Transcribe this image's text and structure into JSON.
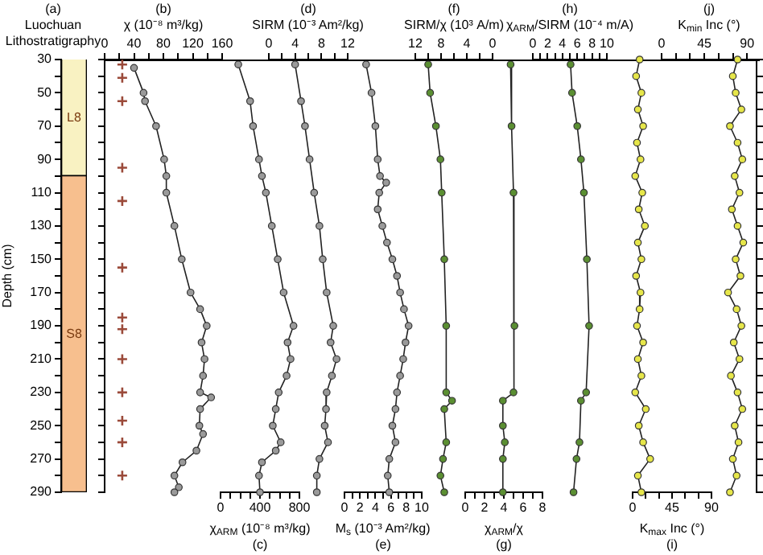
{
  "chart_data": [
    {
      "type": "bar",
      "title": "(a)",
      "subtitle": "Luochuan Lithostratigraphy",
      "ylabel": "Depth (cm)",
      "categories": [
        null
      ],
      "tick_labels": "y",
      "series": [
        {
          "name": "L8",
          "color": "#f9f2c2",
          "base": [
            30
          ],
          "values": [
            70
          ]
        },
        {
          "name": "S8",
          "color": "#f7bf8e",
          "base": [
            100
          ],
          "values": [
            190
          ]
        }
      ],
      "ylim": [
        290,
        30
      ],
      "yticks": [
        30,
        {
          "value": 40,
          "label": null
        },
        50,
        {
          "value": 60,
          "label": null
        },
        70,
        {
          "value": 80,
          "label": null
        },
        90,
        {
          "value": 100,
          "label": null
        },
        110,
        {
          "value": 120,
          "label": null
        },
        130,
        {
          "value": 140,
          "label": null
        },
        150,
        {
          "value": 160,
          "label": null
        },
        170,
        {
          "value": 180,
          "label": null
        },
        190,
        {
          "value": 200,
          "label": null
        },
        210,
        {
          "value": 220,
          "label": null
        },
        230,
        {
          "value": 240,
          "label": null
        },
        250,
        {
          "value": 260,
          "label": null
        },
        270,
        {
          "value": 280,
          "label": null
        },
        290
      ]
    },
    {
      "type": "line",
      "orientation": "horizontal",
      "title": "(b)",
      "xlabel": "χ (10⁻⁸ m³/kg)",
      "marker": "circle",
      "tick_labels": "x",
      "series": [
        {
          "color": "#9a9a9a",
          "x": [
            35,
            50,
            55,
            70,
            90,
            100,
            110,
            130,
            150,
            170,
            180,
            190,
            200,
            210,
            220,
            230,
            233,
            240,
            250,
            255,
            265,
            272,
            280,
            287,
            290
          ],
          "values": [
            40,
            53,
            55,
            70,
            81,
            84,
            84,
            95,
            105,
            117,
            130,
            139,
            132,
            136,
            134,
            130,
            145,
            130,
            129,
            134,
            125,
            106,
            95,
            101,
            95
          ]
        },
        {
          "type": "scatter",
          "marker": "cross",
          "color": "#9b4a3a",
          "x": [
            33,
            41,
            55,
            95,
            115,
            155,
            185,
            192,
            210,
            230,
            247,
            260,
            280
          ],
          "values": [
            24,
            24,
            24,
            24,
            24,
            24,
            24,
            24,
            24,
            24,
            24,
            24,
            24
          ]
        }
      ],
      "xlim": [
        0,
        160
      ],
      "xticks": [
        0,
        {
          "value": 20,
          "label": null
        },
        40,
        {
          "value": 60,
          "label": null
        },
        80,
        {
          "value": 100,
          "label": null
        },
        120,
        {
          "value": 140,
          "label": null
        },
        160
      ],
      "ylim": [
        290,
        30
      ],
      "yticks": [
        {
          "value": 30,
          "label": null
        },
        {
          "value": 40,
          "label": null
        },
        {
          "value": 50,
          "label": null
        },
        {
          "value": 60,
          "label": null
        },
        {
          "value": 70,
          "label": null
        },
        {
          "value": 80,
          "label": null
        },
        {
          "value": 90,
          "label": null
        },
        {
          "value": 100,
          "label": null
        },
        {
          "value": 110,
          "label": null
        },
        {
          "value": 120,
          "label": null
        },
        {
          "value": 130,
          "label": null
        },
        {
          "value": 140,
          "label": null
        },
        {
          "value": 150,
          "label": null
        },
        {
          "value": 160,
          "label": null
        },
        {
          "value": 170,
          "label": null
        },
        {
          "value": 180,
          "label": null
        },
        {
          "value": 190,
          "label": null
        },
        {
          "value": 200,
          "label": null
        },
        {
          "value": 210,
          "label": null
        },
        {
          "value": 220,
          "label": null
        },
        {
          "value": 230,
          "label": null
        },
        {
          "value": 240,
          "label": null
        },
        {
          "value": 250,
          "label": null
        },
        {
          "value": 260,
          "label": null
        },
        {
          "value": 270,
          "label": null
        },
        {
          "value": 280,
          "label": null
        },
        {
          "value": 290,
          "label": null
        }
      ]
    },
    {
      "type": "line",
      "orientation": "horizontal",
      "title": "(c)",
      "xlabel": "χ$_{ARM}$ (10⁻⁸ m³/kg)",
      "marker": "circle",
      "tick_labels": "x",
      "series": [
        {
          "color": "#9a9a9a",
          "x": [
            33,
            55,
            70,
            90,
            100,
            110,
            130,
            150,
            170,
            190,
            200,
            210,
            220,
            230,
            240,
            250,
            260,
            265,
            272,
            280,
            290
          ],
          "values": [
            180,
            300,
            330,
            390,
            420,
            460,
            520,
            580,
            640,
            740,
            680,
            710,
            670,
            590,
            560,
            530,
            610,
            560,
            420,
            390,
            400
          ]
        }
      ],
      "xlim": [
        0,
        800
      ],
      "xticks": [
        0,
        {
          "value": 100,
          "label": null
        },
        {
          "value": 200,
          "label": null
        },
        {
          "value": 300,
          "label": null
        },
        400,
        {
          "value": 500,
          "label": null
        },
        {
          "value": 600,
          "label": null
        },
        {
          "value": 700,
          "label": null
        },
        800
      ],
      "ylim": [
        290,
        30
      ]
    },
    {
      "type": "line",
      "orientation": "horizontal",
      "title": "(d)",
      "xlabel": "SIRM (10⁻³ Am²/kg)",
      "marker": "circle",
      "tick_labels": "x",
      "series": [
        {
          "color": "#9a9a9a",
          "x": [
            33,
            55,
            70,
            90,
            110,
            130,
            150,
            170,
            190,
            200,
            210,
            220,
            230,
            240,
            250,
            260,
            270,
            280,
            290
          ],
          "values": [
            4.0,
            4.9,
            5.5,
            6.2,
            6.9,
            7.7,
            8.2,
            8.8,
            9.8,
            9.4,
            10.3,
            9.6,
            8.8,
            8.7,
            8.5,
            9.0,
            7.7,
            7.3,
            7.3
          ]
        }
      ],
      "xlim": [
        0,
        12
      ],
      "xticks": [
        0,
        {
          "value": 2,
          "label": null
        },
        4,
        {
          "value": 6,
          "label": null
        },
        8,
        {
          "value": 10,
          "label": null
        },
        12
      ],
      "ylim": [
        290,
        30
      ]
    },
    {
      "type": "line",
      "orientation": "horizontal",
      "title": "(e)",
      "xlabel": "M$_{s}$ (10⁻³ Am²/kg)",
      "marker": "circle",
      "tick_labels": "x",
      "series": [
        {
          "color": "#9a9a9a",
          "x": [
            33,
            50,
            70,
            90,
            100,
            104,
            110,
            120,
            130,
            140,
            150,
            160,
            170,
            180,
            190,
            200,
            210,
            220,
            230,
            240,
            250,
            260,
            270,
            280,
            290
          ],
          "values": [
            2.8,
            3.5,
            4.0,
            4.3,
            4.6,
            5.4,
            4.5,
            4.3,
            4.9,
            5.5,
            6.2,
            6.8,
            7.2,
            7.7,
            8.3,
            7.9,
            7.6,
            7.2,
            6.8,
            6.6,
            6.2,
            6.6,
            5.8,
            5.6,
            5.8
          ]
        }
      ],
      "xlim": [
        0,
        10
      ],
      "xticks": [
        0,
        {
          "value": 1,
          "label": null
        },
        2,
        {
          "value": 3,
          "label": null
        },
        4,
        {
          "value": 5,
          "label": null
        },
        6,
        {
          "value": 7,
          "label": null
        },
        8,
        {
          "value": 9,
          "label": null
        },
        10
      ],
      "ylim": [
        290,
        30
      ]
    },
    {
      "type": "line",
      "orientation": "horizontal",
      "title": "(f)",
      "xlabel": "SIRM/χ (10³ A/m)",
      "marker": "circle",
      "tick_labels": "x",
      "series": [
        {
          "color": "#5b8f32",
          "x": [
            33,
            50,
            70,
            90,
            110,
            150,
            190,
            230,
            235,
            240,
            260,
            270,
            280,
            290
          ],
          "values": [
            10.0,
            9.7,
            8.8,
            8.1,
            7.9,
            7.5,
            7.2,
            7.2,
            6.3,
            7.5,
            7.2,
            7.7,
            8.1,
            7.5
          ]
        }
      ],
      "xlim": [
        12,
        0
      ],
      "xticks": [
        12,
        {
          "value": 10,
          "label": null
        },
        8,
        {
          "value": 6,
          "label": null
        },
        4,
        {
          "value": 2,
          "label": null
        },
        0
      ],
      "ylim": [
        290,
        30
      ]
    },
    {
      "type": "line",
      "orientation": "horizontal",
      "title": "(g)",
      "xlabel": "χ$_{ARM}$/χ",
      "marker": "circle",
      "tick_labels": "x",
      "series": [
        {
          "color": "#5b8f32",
          "x": [
            33,
            70,
            110,
            190,
            230,
            235,
            250,
            260,
            270,
            290
          ],
          "values": [
            4.7,
            4.8,
            5.0,
            5.1,
            5.0,
            3.9,
            3.9,
            4.1,
            3.9,
            3.9
          ]
        }
      ],
      "xlim": [
        0,
        8
      ],
      "xticks": [
        0,
        {
          "value": 1,
          "label": null
        },
        2,
        {
          "value": 3,
          "label": null
        },
        4,
        {
          "value": 5,
          "label": null
        },
        6,
        {
          "value": 7,
          "label": null
        },
        8
      ],
      "ylim": [
        290,
        30
      ]
    },
    {
      "type": "line",
      "orientation": "horizontal",
      "title": "(h)",
      "xlabel": "χ$_{ARM}$/SIRM (10⁻⁴ m/A)",
      "marker": "circle",
      "tick_labels": "x",
      "series": [
        {
          "color": "#5b8f32",
          "x": [
            33,
            50,
            70,
            90,
            110,
            150,
            190,
            230,
            235,
            260,
            270,
            290
          ],
          "values": [
            5.1,
            5.3,
            6.0,
            6.5,
            6.9,
            7.3,
            7.6,
            7.2,
            6.5,
            6.3,
            5.9,
            5.5
          ]
        }
      ],
      "xlim": [
        0,
        10
      ],
      "xticks": [
        0,
        {
          "value": 1,
          "label": null
        },
        2,
        {
          "value": 3,
          "label": null
        },
        4,
        {
          "value": 5,
          "label": null
        },
        6,
        {
          "value": 7,
          "label": null
        },
        8,
        {
          "value": 9,
          "label": null
        },
        10
      ],
      "ylim": [
        290,
        30
      ]
    },
    {
      "type": "line",
      "orientation": "horizontal",
      "title": "(i)",
      "xlabel": "K$_{max}$ Inc (°)",
      "marker": "circle",
      "tick_labels": "x",
      "series": [
        {
          "color": "#e6e64a",
          "x": [
            30,
            40,
            50,
            60,
            70,
            80,
            90,
            100,
            110,
            120,
            130,
            140,
            150,
            160,
            170,
            180,
            190,
            200,
            210,
            220,
            230,
            240,
            250,
            260,
            270,
            280,
            290
          ],
          "values": [
            8,
            4,
            10,
            6,
            12,
            5,
            9,
            3,
            11,
            7,
            14,
            6,
            10,
            4,
            9,
            8,
            5,
            12,
            6,
            10,
            3,
            15,
            7,
            12,
            20,
            6,
            10
          ]
        }
      ],
      "xlim": [
        0,
        90
      ],
      "xticks": [
        0,
        {
          "value": 15,
          "label": null
        },
        {
          "value": 30,
          "label": null
        },
        45,
        {
          "value": 60,
          "label": null
        },
        {
          "value": 75,
          "label": null
        },
        90
      ],
      "ylim": [
        290,
        30
      ]
    },
    {
      "type": "line",
      "orientation": "horizontal",
      "title": "(j)",
      "xlabel": "K$_{min}$ Inc (°)",
      "marker": "circle",
      "tick_labels": "x",
      "series": [
        {
          "color": "#e6e64a",
          "x": [
            30,
            40,
            50,
            60,
            70,
            80,
            90,
            100,
            110,
            120,
            130,
            140,
            150,
            160,
            170,
            180,
            190,
            200,
            210,
            220,
            230,
            240,
            250,
            260,
            270,
            280,
            290
          ],
          "values": [
            80,
            75,
            78,
            84,
            72,
            80,
            85,
            77,
            82,
            74,
            80,
            86,
            78,
            83,
            70,
            79,
            84,
            76,
            82,
            73,
            80,
            85,
            77,
            81,
            75,
            79,
            72
          ]
        }
      ],
      "xlim": [
        0,
        100
      ],
      "xticks": [
        0,
        {
          "value": 15,
          "label": null
        },
        {
          "value": 30,
          "label": null
        },
        45,
        {
          "value": 60,
          "label": null
        },
        {
          "value": 75,
          "label": null
        },
        90
      ],
      "ylim": [
        290,
        30
      ],
      "yticks": [
        {
          "value": 30,
          "label": null
        },
        {
          "value": 40,
          "label": null
        },
        {
          "value": 50,
          "label": null
        },
        {
          "value": 60,
          "label": null
        },
        {
          "value": 70,
          "label": null
        },
        {
          "value": 80,
          "label": null
        },
        {
          "value": 90,
          "label": null
        },
        {
          "value": 100,
          "label": null
        },
        {
          "value": 110,
          "label": null
        },
        {
          "value": 120,
          "label": null
        },
        {
          "value": 130,
          "label": null
        },
        {
          "value": 140,
          "label": null
        },
        {
          "value": 150,
          "label": null
        },
        {
          "value": 160,
          "label": null
        },
        {
          "value": 170,
          "label": null
        },
        {
          "value": 180,
          "label": null
        },
        {
          "value": 190,
          "label": null
        },
        {
          "value": 200,
          "label": null
        },
        {
          "value": 210,
          "label": null
        },
        {
          "value": 220,
          "label": null
        },
        {
          "value": 230,
          "label": null
        },
        {
          "value": 240,
          "label": null
        },
        {
          "value": 250,
          "label": null
        },
        {
          "value": 260,
          "label": null
        },
        {
          "value": 270,
          "label": null
        },
        {
          "value": 280,
          "label": null
        },
        {
          "value": 290,
          "label": null
        }
      ]
    }
  ]
}
